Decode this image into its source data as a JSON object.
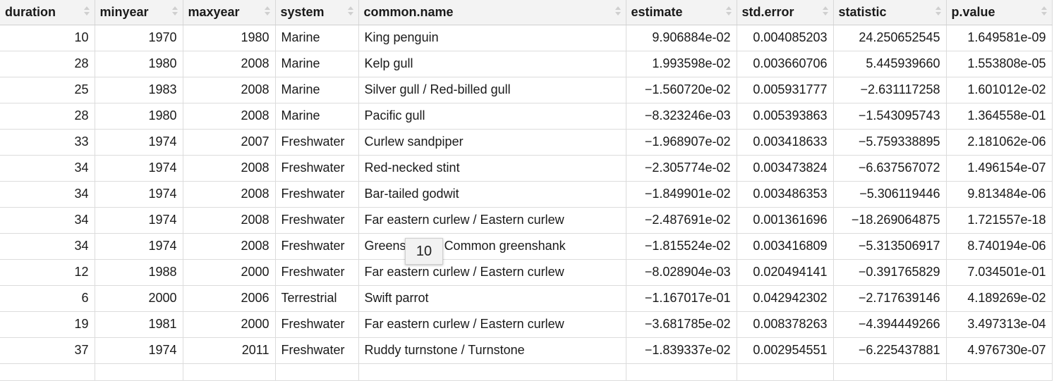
{
  "columns": [
    {
      "key": "duration",
      "label": "duration"
    },
    {
      "key": "minyear",
      "label": "minyear"
    },
    {
      "key": "maxyear",
      "label": "maxyear"
    },
    {
      "key": "system",
      "label": "system"
    },
    {
      "key": "common_name",
      "label": "common.name"
    },
    {
      "key": "estimate",
      "label": "estimate"
    },
    {
      "key": "std_error",
      "label": "std.error"
    },
    {
      "key": "statistic",
      "label": "statistic"
    },
    {
      "key": "p_value",
      "label": "p.value"
    }
  ],
  "rows": [
    {
      "duration": "10",
      "minyear": "1970",
      "maxyear": "1980",
      "system": "Marine",
      "common_name": "King penguin",
      "estimate": "9.906884e-02",
      "std_error": "0.004085203",
      "statistic": "24.250652545",
      "p_value": "1.649581e-09"
    },
    {
      "duration": "28",
      "minyear": "1980",
      "maxyear": "2008",
      "system": "Marine",
      "common_name": "Kelp gull",
      "estimate": "1.993598e-02",
      "std_error": "0.003660706",
      "statistic": "5.445939660",
      "p_value": "1.553808e-05"
    },
    {
      "duration": "25",
      "minyear": "1983",
      "maxyear": "2008",
      "system": "Marine",
      "common_name": "Silver gull / Red-billed gull",
      "estimate": "−1.560720e-02",
      "std_error": "0.005931777",
      "statistic": "−2.631117258",
      "p_value": "1.601012e-02"
    },
    {
      "duration": "28",
      "minyear": "1980",
      "maxyear": "2008",
      "system": "Marine",
      "common_name": "Pacific gull",
      "estimate": "−8.323246e-03",
      "std_error": "0.005393863",
      "statistic": "−1.543095743",
      "p_value": "1.364558e-01"
    },
    {
      "duration": "33",
      "minyear": "1974",
      "maxyear": "2007",
      "system": "Freshwater",
      "common_name": "Curlew sandpiper",
      "estimate": "−1.968907e-02",
      "std_error": "0.003418633",
      "statistic": "−5.759338895",
      "p_value": "2.181062e-06"
    },
    {
      "duration": "34",
      "minyear": "1974",
      "maxyear": "2008",
      "system": "Freshwater",
      "common_name": "Red-necked stint",
      "estimate": "−2.305774e-02",
      "std_error": "0.003473824",
      "statistic": "−6.637567072",
      "p_value": "1.496154e-07"
    },
    {
      "duration": "34",
      "minyear": "1974",
      "maxyear": "2008",
      "system": "Freshwater",
      "common_name": "Bar-tailed godwit",
      "estimate": "−1.849901e-02",
      "std_error": "0.003486353",
      "statistic": "−5.306119446",
      "p_value": "9.813484e-06"
    },
    {
      "duration": "34",
      "minyear": "1974",
      "maxyear": "2008",
      "system": "Freshwater",
      "common_name": "Far eastern curlew / Eastern curlew",
      "estimate": "−2.487691e-02",
      "std_error": "0.001361696",
      "statistic": "−18.269064875",
      "p_value": "1.721557e-18"
    },
    {
      "duration": "34",
      "minyear": "1974",
      "maxyear": "2008",
      "system": "Freshwater",
      "common_name": "Greenshank / Common greenshank",
      "estimate": "−1.815524e-02",
      "std_error": "0.003416809",
      "statistic": "−5.313506917",
      "p_value": "8.740194e-06"
    },
    {
      "duration": "12",
      "minyear": "1988",
      "maxyear": "2000",
      "system": "Freshwater",
      "common_name": "Far eastern curlew / Eastern curlew",
      "estimate": "−8.028904e-03",
      "std_error": "0.020494141",
      "statistic": "−0.391765829",
      "p_value": "7.034501e-01"
    },
    {
      "duration": "6",
      "minyear": "2000",
      "maxyear": "2006",
      "system": "Terrestrial",
      "common_name": "Swift parrot",
      "estimate": "−1.167017e-01",
      "std_error": "0.042942302",
      "statistic": "−2.717639146",
      "p_value": "4.189269e-02"
    },
    {
      "duration": "19",
      "minyear": "1981",
      "maxyear": "2000",
      "system": "Freshwater",
      "common_name": "Far eastern curlew / Eastern curlew",
      "estimate": "−3.681785e-02",
      "std_error": "0.008378263",
      "statistic": "−4.394449266",
      "p_value": "3.497313e-04"
    },
    {
      "duration": "37",
      "minyear": "1974",
      "maxyear": "2011",
      "system": "Freshwater",
      "common_name": "Ruddy turnstone / Turnstone",
      "estimate": "−1.839337e-02",
      "std_error": "0.002954551",
      "statistic": "−6.225437881",
      "p_value": "4.976730e-07"
    }
  ],
  "tooltip": {
    "text": "10"
  },
  "icons": {
    "sort": "sort-arrows-icon"
  }
}
